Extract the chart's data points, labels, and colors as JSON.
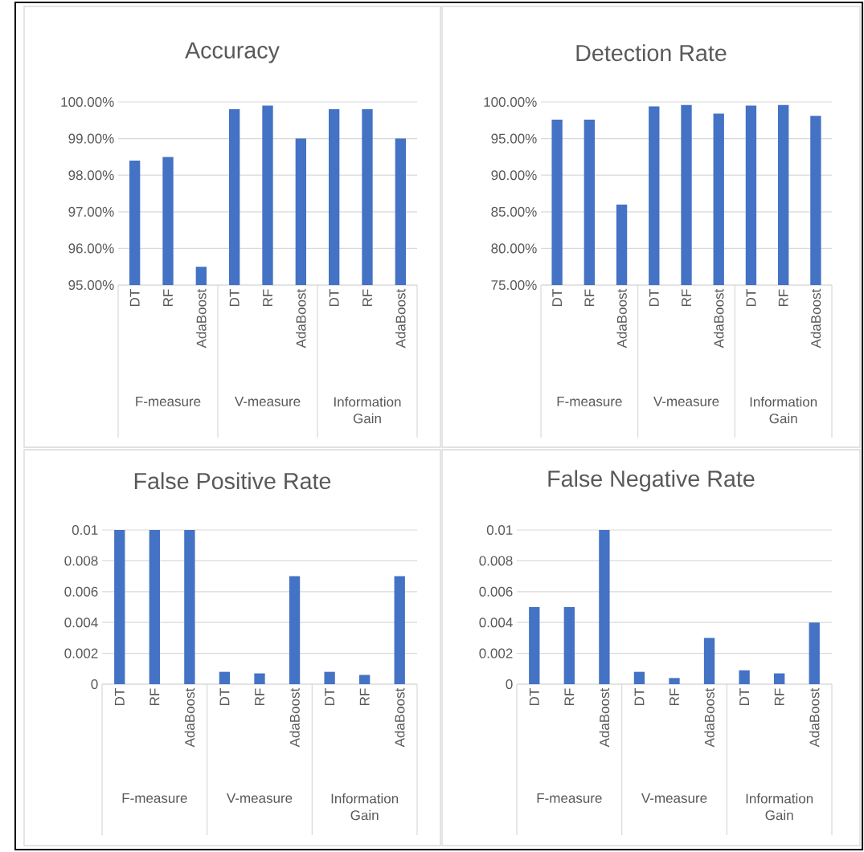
{
  "chart_data": [
    {
      "type": "bar",
      "title": "Accuracy",
      "categories": [
        "DT",
        "RF",
        "AdaBoost",
        "DT",
        "RF",
        "AdaBoost",
        "DT",
        "RF",
        "AdaBoost"
      ],
      "values": [
        98.4,
        98.5,
        95.5,
        99.8,
        99.9,
        99.0,
        99.8,
        99.8,
        99.0
      ],
      "color": "#4472c4",
      "ylim": [
        95,
        100
      ],
      "yticks": [
        {
          "value": 95,
          "label": "95.00%"
        },
        {
          "value": 96,
          "label": "96.00%"
        },
        {
          "value": 97,
          "label": "97.00%"
        },
        {
          "value": 98,
          "label": "98.00%"
        },
        {
          "value": 99,
          "label": "99.00%"
        },
        {
          "value": 100,
          "label": "100.00%"
        }
      ],
      "grid": "y",
      "annotations": [
        "F-measure",
        "V-measure",
        "Information Gain"
      ]
    },
    {
      "type": "bar",
      "title": "Detection Rate",
      "categories": [
        "DT",
        "RF",
        "AdaBoost",
        "DT",
        "RF",
        "AdaBoost",
        "DT",
        "RF",
        "AdaBoost"
      ],
      "values": [
        97.6,
        97.6,
        86.0,
        99.4,
        99.6,
        98.4,
        99.5,
        99.6,
        98.1
      ],
      "color": "#4472c4",
      "ylim": [
        75,
        100
      ],
      "yticks": [
        {
          "value": 75,
          "label": "75.00%"
        },
        {
          "value": 80,
          "label": "80.00%"
        },
        {
          "value": 85,
          "label": "85.00%"
        },
        {
          "value": 90,
          "label": "90.00%"
        },
        {
          "value": 95,
          "label": "95.00%"
        },
        {
          "value": 100,
          "label": "100.00%"
        }
      ],
      "grid": "y",
      "annotations": [
        "F-measure",
        "V-measure",
        "Information Gain"
      ]
    },
    {
      "type": "bar",
      "title": "False Positive Rate",
      "categories": [
        "DT",
        "RF",
        "AdaBoost",
        "DT",
        "RF",
        "AdaBoost",
        "DT",
        "RF",
        "AdaBoost"
      ],
      "values": [
        0.01,
        0.01,
        0.01,
        0.0008,
        0.0007,
        0.007,
        0.0008,
        0.0006,
        0.007
      ],
      "color": "#4472c4",
      "ylim": [
        0,
        0.01
      ],
      "yticks": [
        0,
        0.002,
        0.004,
        0.006,
        0.008,
        0.01
      ],
      "grid": "y",
      "annotations": [
        "F-measure",
        "V-measure",
        "Information Gain"
      ]
    },
    {
      "type": "bar",
      "title": "False Negative Rate",
      "categories": [
        "DT",
        "RF",
        "AdaBoost",
        "DT",
        "RF",
        "AdaBoost",
        "DT",
        "RF",
        "AdaBoost"
      ],
      "values": [
        0.005,
        0.005,
        0.01,
        0.0008,
        0.0004,
        0.003,
        0.0009,
        0.0007,
        0.004
      ],
      "color": "#4472c4",
      "ylim": [
        0,
        0.01
      ],
      "yticks": [
        0,
        0.002,
        0.004,
        0.006,
        0.008,
        0.01
      ],
      "grid": "y",
      "annotations": [
        "F-measure",
        "V-measure",
        "Information Gain"
      ]
    }
  ]
}
